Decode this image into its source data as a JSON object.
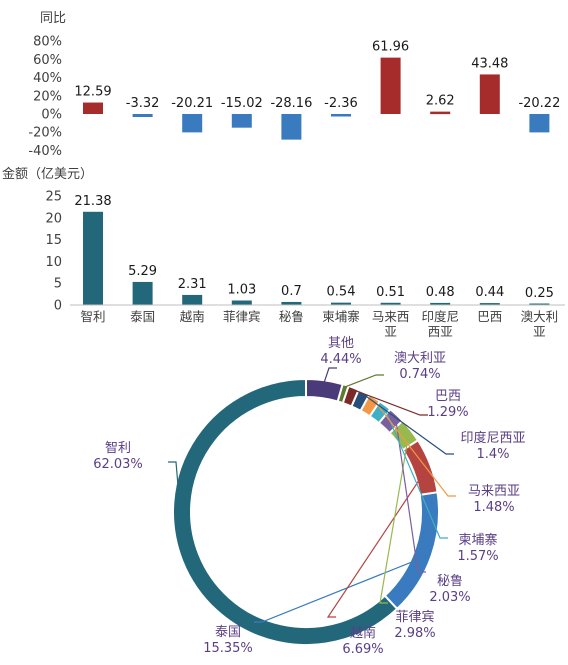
{
  "chart_data": [
    {
      "type": "bar",
      "ylabel": "同比",
      "yticks": [
        "80%",
        "60%",
        "40%",
        "20%",
        "0%",
        "-20%",
        "-40%"
      ],
      "ylim": [
        -40,
        80
      ],
      "categories": [
        "智利",
        "泰国",
        "越南",
        "菲律宾",
        "秘鲁",
        "柬埔寨",
        "马来西亚",
        "印度尼西亚",
        "巴西",
        "澳大利亚"
      ],
      "values": [
        12.59,
        -3.32,
        -20.21,
        -15.02,
        -28.16,
        -2.36,
        61.96,
        2.62,
        43.48,
        -20.22
      ],
      "value_labels": [
        "12.59",
        "-3.32",
        "-20.21",
        "-15.02",
        "-28.16",
        "-2.36",
        "61.96",
        "2.62",
        "43.48",
        "-20.22"
      ],
      "colors": {
        "positive": "#a62c2c",
        "negative": "#3a7bbf"
      }
    },
    {
      "type": "bar",
      "ylabel": "金额（亿美元）",
      "yticks": [
        "25",
        "20",
        "15",
        "10",
        "5",
        "0"
      ],
      "ylim": [
        0,
        25
      ],
      "categories": [
        "智利",
        "泰国",
        "越南",
        "菲律宾",
        "秘鲁",
        "柬埔寨",
        "马来西亚",
        "印度尼西亚",
        "巴西",
        "澳大利亚"
      ],
      "category_lines": [
        [
          "智利"
        ],
        [
          "泰国"
        ],
        [
          "越南"
        ],
        [
          "菲律宾"
        ],
        [
          "秘鲁"
        ],
        [
          "柬埔寨"
        ],
        [
          "马来西",
          "亚"
        ],
        [
          "印度尼",
          "西亚"
        ],
        [
          "巴西"
        ],
        [
          "澳大利",
          "亚"
        ]
      ],
      "values": [
        21.38,
        5.29,
        2.31,
        1.03,
        0.7,
        0.54,
        0.51,
        0.48,
        0.44,
        0.25
      ],
      "value_labels": [
        "21.38",
        "5.29",
        "2.31",
        "1.03",
        "0.7",
        "0.54",
        "0.51",
        "0.48",
        "0.44",
        "0.25"
      ],
      "colors": {
        "bar": "#23687a"
      }
    },
    {
      "type": "pie",
      "variant": "donut",
      "slices": [
        {
          "name": "智利",
          "value": 62.03,
          "pct": "62.03%",
          "color": "#23687a",
          "text_color": "#5a3f85"
        },
        {
          "name": "泰国",
          "value": 15.35,
          "pct": "15.35%",
          "color": "#3a7bbf",
          "text_color": "#5a3f85"
        },
        {
          "name": "越南",
          "value": 6.69,
          "pct": "6.69%",
          "color": "#b5433f",
          "text_color": "#5a3f85"
        },
        {
          "name": "菲律宾",
          "value": 2.98,
          "pct": "2.98%",
          "color": "#98b94e",
          "text_color": "#5a3f85"
        },
        {
          "name": "秘鲁",
          "value": 2.03,
          "pct": "2.03%",
          "color": "#7a5fa0",
          "text_color": "#5a3f85"
        },
        {
          "name": "柬埔寨",
          "value": 1.57,
          "pct": "1.57%",
          "color": "#3eafc4",
          "text_color": "#5a3f85"
        },
        {
          "name": "马来西亚",
          "value": 1.48,
          "pct": "1.48%",
          "color": "#f39845",
          "text_color": "#5a3f85"
        },
        {
          "name": "印度尼西亚",
          "value": 1.4,
          "pct": "1.4%",
          "color": "#284f7a",
          "text_color": "#5a3f85"
        },
        {
          "name": "巴西",
          "value": 1.29,
          "pct": "1.29%",
          "color": "#7a2a28",
          "text_color": "#5a3f85"
        },
        {
          "name": "澳大利亚",
          "value": 0.74,
          "pct": "0.74%",
          "color": "#5e7a2c",
          "text_color": "#5a3f85"
        },
        {
          "name": "其他",
          "value": 4.44,
          "pct": "4.44%",
          "color": "#4b3a7a",
          "text_color": "#5a3f85"
        }
      ]
    }
  ]
}
